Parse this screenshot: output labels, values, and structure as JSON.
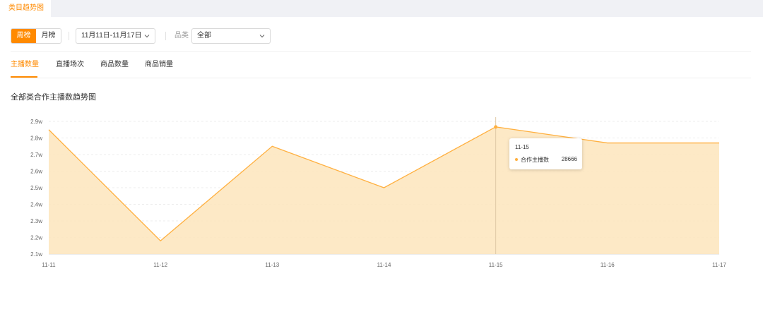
{
  "top_tab": {
    "label": "类目趋势图"
  },
  "period_toggle": {
    "options": [
      "周榜",
      "月榜"
    ],
    "active": "周榜"
  },
  "date_range": {
    "value": "11月11日-11月17日"
  },
  "category": {
    "label": "品类",
    "value": "全部"
  },
  "metric_tabs": {
    "items": [
      "主播数量",
      "直播场次",
      "商品数量",
      "商品销量"
    ],
    "active": "主播数量"
  },
  "chart_title": "全部类合作主播数趋势图",
  "tooltip": {
    "date": "11-15",
    "series_name": "合作主播数",
    "value": "28666"
  },
  "colors": {
    "accent": "#ff8a00",
    "line": "#ffb040",
    "area": "#fde7c0"
  },
  "chart_data": {
    "type": "area",
    "title": "全部类合作主播数趋势图",
    "x": [
      "11-11",
      "11-12",
      "11-13",
      "11-14",
      "11-15",
      "11-16",
      "11-17"
    ],
    "series": [
      {
        "name": "合作主播数",
        "values": [
          28500,
          21800,
          27500,
          25000,
          28666,
          27700,
          27700
        ]
      }
    ],
    "yticks": [
      "2.1w",
      "2.2w",
      "2.3w",
      "2.4w",
      "2.5w",
      "2.6w",
      "2.7w",
      "2.8w",
      "2.9w"
    ],
    "ylim": [
      21000,
      29000
    ],
    "grid": true,
    "highlight": "11-15"
  }
}
